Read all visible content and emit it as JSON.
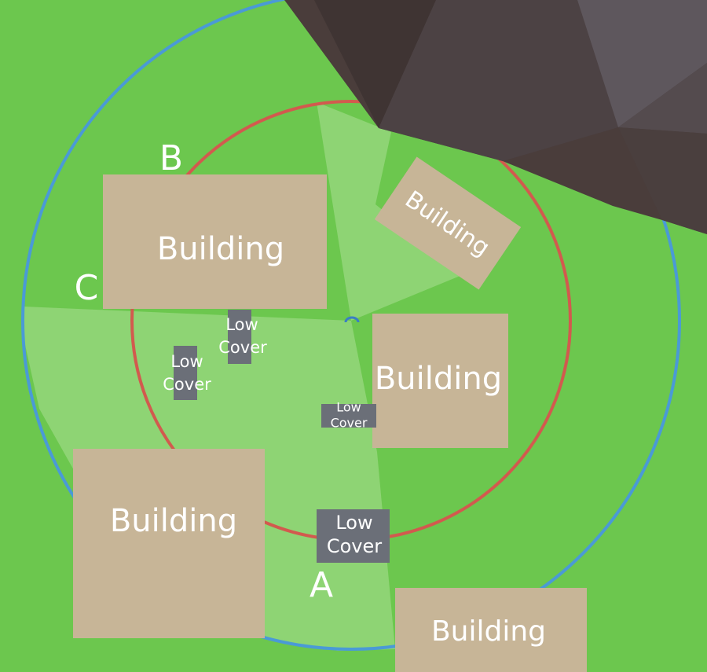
{
  "colors": {
    "grass": "#6cc74e",
    "visible_area": "#8ed474",
    "outer_ring": "#4a9ad6",
    "inner_ring": "#d25a4e",
    "building": "#c7b597",
    "low_cover": "#6b6f78",
    "rock": "#4a3d3b"
  },
  "labels": {
    "a": "A",
    "b": "B",
    "c": "C"
  },
  "buildings": {
    "b1": "Building",
    "b2": "Building",
    "b3": "Building",
    "b4": "Building",
    "b5": "Building"
  },
  "covers": {
    "c1": {
      "line1": "Low",
      "line2": "Cover"
    },
    "c2": {
      "line1": "Low",
      "line2": "Cover"
    },
    "c3": {
      "line1": "Low",
      "line2": "Cover"
    },
    "c4": {
      "line1": "Low",
      "line2": "Cover"
    }
  }
}
